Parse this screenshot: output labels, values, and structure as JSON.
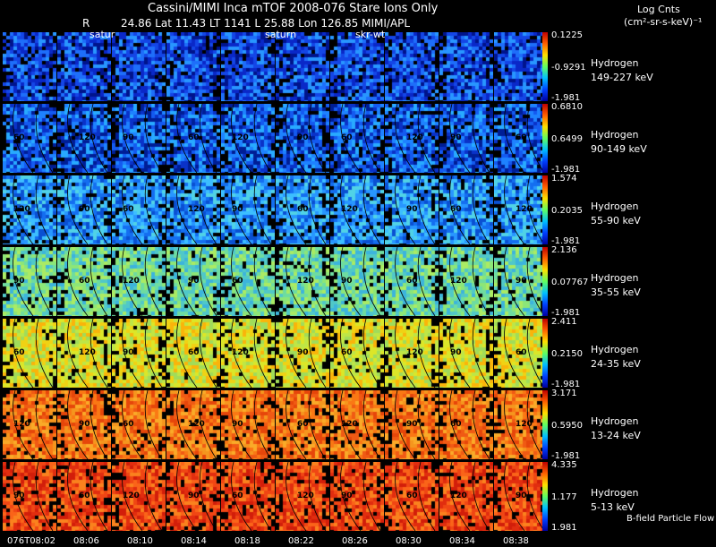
{
  "header": {
    "title": "Cassini/MIMI Inca mTOF  2008-076   Stare    Ions Only",
    "r_label": "R",
    "position_line": "24.86 Lat 11.43 LT 1141 L      25.88 Lon       126.85  MIMI/APL",
    "units_title": "Log Cnts",
    "units": "(cm²-sr-s-keV)⁻¹",
    "saturn_labels": [
      "satur",
      "saturn",
      "skr-wt"
    ]
  },
  "rows": [
    {
      "species": "Hydrogen",
      "energy": "149-227 keV",
      "max": "0.1225",
      "mid": "-0.9291",
      "min": "-1.981",
      "palette": "low"
    },
    {
      "species": "Hydrogen",
      "energy": "90-149 keV",
      "max": "0.6810",
      "mid": "0.6499",
      "min": "-1.981",
      "palette": "low2"
    },
    {
      "species": "Hydrogen",
      "energy": "55-90 keV",
      "max": "1.574",
      "mid": "0.2035",
      "min": "-1.981",
      "palette": "cyan"
    },
    {
      "species": "Hydrogen",
      "energy": "35-55 keV",
      "max": "2.136",
      "mid": "0.07767",
      "min": "-1.981",
      "palette": "green"
    },
    {
      "species": "Hydrogen",
      "energy": "24-35 keV",
      "max": "2.411",
      "mid": "0.2150",
      "min": "-1.981",
      "palette": "yellow"
    },
    {
      "species": "Hydrogen",
      "energy": "13-24 keV",
      "max": "3.171",
      "mid": "0.5950",
      "min": "-1.981",
      "palette": "orange"
    },
    {
      "species": "Hydrogen",
      "energy": "5-13 keV",
      "max": "4.335",
      "mid": "1.177",
      "min": "1.981",
      "palette": "red"
    }
  ],
  "contour_labels": [
    "90",
    "60",
    "120"
  ],
  "time_labels": [
    "076T08:02",
    "08:06",
    "08:10",
    "08:14",
    "08:18",
    "08:22",
    "08:26",
    "08:30",
    "08:34",
    "08:38"
  ],
  "footer_note": "B-field Particle Flow"
}
